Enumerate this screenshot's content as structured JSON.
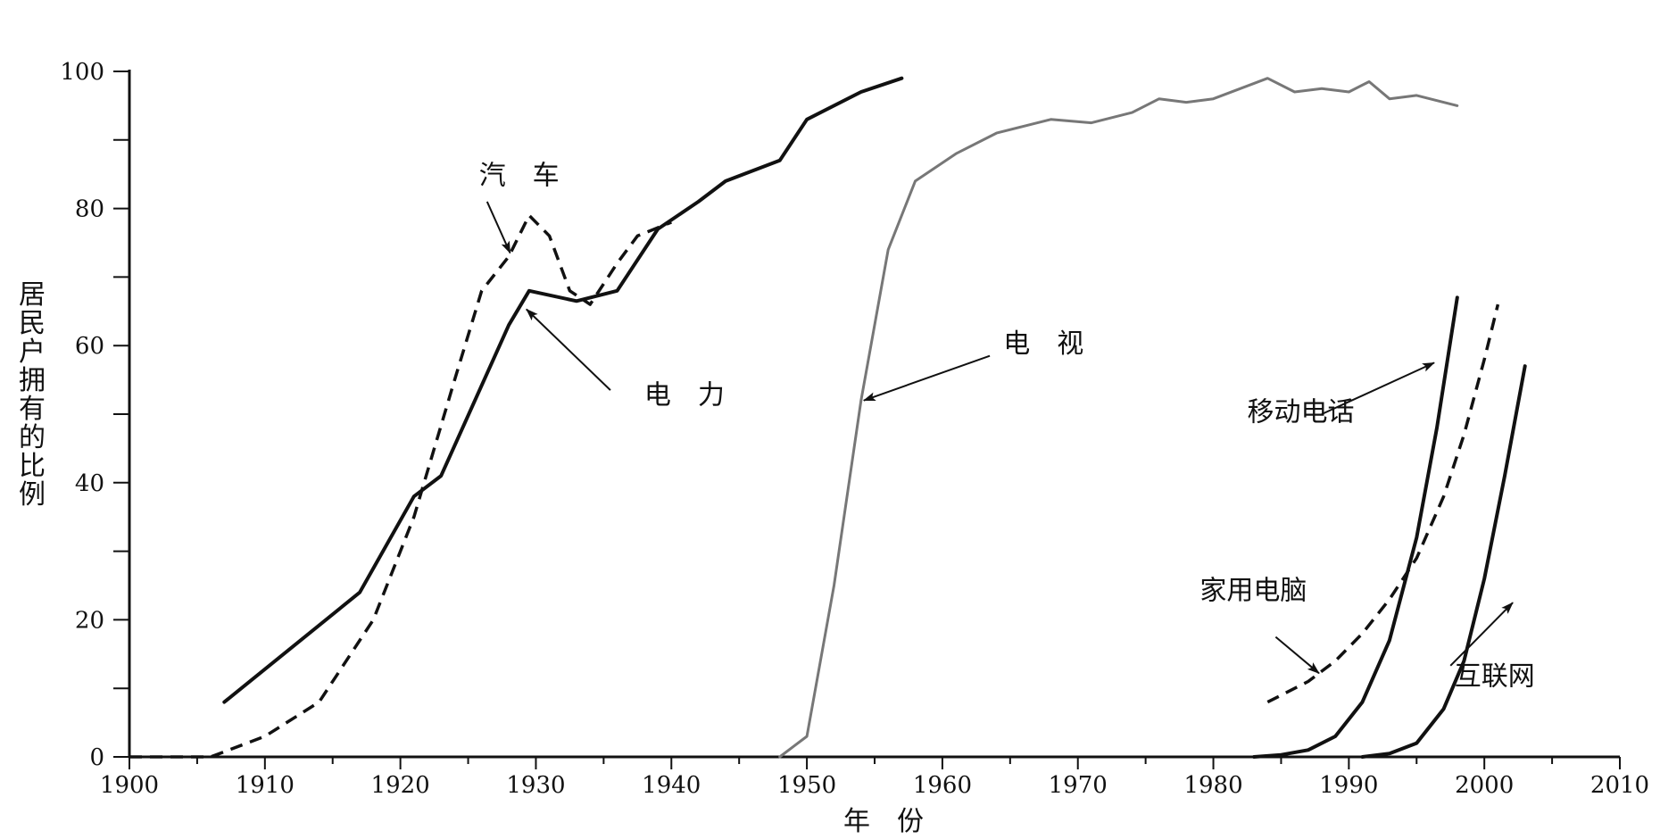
{
  "chart_data": {
    "type": "line",
    "title": "",
    "xlabel": "年　份",
    "ylabel": "居民户拥有的比例",
    "xlim": [
      1900,
      2010
    ],
    "ylim": [
      0,
      100
    ],
    "x_ticks": [
      1900,
      1910,
      1920,
      1930,
      1940,
      1950,
      1960,
      1970,
      1980,
      1990,
      2000,
      2010
    ],
    "y_ticks": [
      0,
      20,
      40,
      60,
      80,
      100
    ],
    "grid": false,
    "legend": "none",
    "series": [
      {
        "name": "电　力",
        "style": "solid",
        "color": "#111111",
        "points": [
          [
            1907,
            8
          ],
          [
            1917,
            24
          ],
          [
            1921,
            38
          ],
          [
            1923,
            41
          ],
          [
            1928,
            63
          ],
          [
            1929.5,
            68
          ],
          [
            1933,
            66.5
          ],
          [
            1936,
            68
          ],
          [
            1939,
            77
          ],
          [
            1942,
            81
          ],
          [
            1944,
            84
          ],
          [
            1948,
            87
          ],
          [
            1950,
            93
          ],
          [
            1954,
            97
          ],
          [
            1957,
            99
          ]
        ]
      },
      {
        "name": "汽　车",
        "style": "dashed",
        "color": "#111111",
        "points": [
          [
            1900,
            0
          ],
          [
            1906,
            0
          ],
          [
            1910,
            3
          ],
          [
            1914,
            8
          ],
          [
            1918,
            20
          ],
          [
            1921,
            35
          ],
          [
            1924,
            55
          ],
          [
            1926,
            68
          ],
          [
            1928,
            73
          ],
          [
            1929.5,
            79
          ],
          [
            1931,
            76
          ],
          [
            1932.5,
            68
          ],
          [
            1934,
            66
          ],
          [
            1936,
            72
          ],
          [
            1937.5,
            76
          ],
          [
            1940,
            78
          ]
        ]
      },
      {
        "name": "电　视",
        "style": "solid-thin",
        "color": "#777777",
        "points": [
          [
            1948,
            0
          ],
          [
            1950,
            3
          ],
          [
            1952,
            25
          ],
          [
            1954,
            52
          ],
          [
            1956,
            74
          ],
          [
            1958,
            84
          ],
          [
            1961,
            88
          ],
          [
            1964,
            91
          ],
          [
            1966,
            92
          ],
          [
            1968,
            93
          ],
          [
            1971,
            92.5
          ],
          [
            1974,
            94
          ],
          [
            1976,
            96
          ],
          [
            1978,
            95.5
          ],
          [
            1980,
            96
          ],
          [
            1982,
            97.5
          ],
          [
            1984,
            99
          ],
          [
            1986,
            97
          ],
          [
            1988,
            97.5
          ],
          [
            1990,
            97
          ],
          [
            1991.5,
            98.5
          ],
          [
            1993,
            96
          ],
          [
            1995,
            96.5
          ],
          [
            1998,
            95
          ]
        ]
      },
      {
        "name": "移动电话",
        "style": "solid",
        "color": "#111111",
        "points": [
          [
            1983,
            0
          ],
          [
            1985,
            0.3
          ],
          [
            1987,
            1
          ],
          [
            1989,
            3
          ],
          [
            1991,
            8
          ],
          [
            1993,
            17
          ],
          [
            1995,
            32
          ],
          [
            1996.5,
            48
          ],
          [
            1998,
            67
          ]
        ]
      },
      {
        "name": "家用电脑",
        "style": "dashed",
        "color": "#111111",
        "points": [
          [
            1984,
            8
          ],
          [
            1987,
            11
          ],
          [
            1989,
            14
          ],
          [
            1991,
            18
          ],
          [
            1993,
            23
          ],
          [
            1995,
            29
          ],
          [
            1997,
            38
          ],
          [
            1998.5,
            47
          ],
          [
            2000,
            58
          ],
          [
            2001,
            66
          ]
        ]
      },
      {
        "name": "互联网",
        "style": "solid",
        "color": "#111111",
        "points": [
          [
            1991,
            0
          ],
          [
            1993,
            0.5
          ],
          [
            1995,
            2
          ],
          [
            1997,
            7
          ],
          [
            1998.5,
            14
          ],
          [
            2000,
            26
          ],
          [
            2001.5,
            41
          ],
          [
            2003,
            57
          ]
        ]
      }
    ],
    "annotations": [
      {
        "text": "汽　车",
        "label_x": 1925.8,
        "label_y": 83.5,
        "arrow_from": [
          1926.4,
          81
        ],
        "arrow_to": [
          1928.1,
          73.5
        ]
      },
      {
        "text": "电　力",
        "label_x": 1938,
        "label_y": 51.5,
        "arrow_from": [
          1935.5,
          53.5
        ],
        "arrow_to": [
          1929.3,
          65.3
        ]
      },
      {
        "text": "电　视",
        "label_x": 1964.5,
        "label_y": 59,
        "arrow_from": [
          1963.5,
          58.5
        ],
        "arrow_to": [
          1954.2,
          52
        ]
      },
      {
        "text": "移动电话",
        "label_x": 1982.5,
        "label_y": 49,
        "arrow_from": [
          1988,
          50
        ],
        "arrow_to": [
          1996.3,
          57.5
        ]
      },
      {
        "text": "家用电脑",
        "label_x": 1979,
        "label_y": 23,
        "arrow_from": [
          1984.6,
          17.5
        ],
        "arrow_to": [
          1987.8,
          12.2
        ]
      },
      {
        "text": "互联网",
        "label_x": 1997.8,
        "label_y": 10.5,
        "arrow_from": [
          1997.5,
          13.3
        ],
        "arrow_to": [
          2002.1,
          22.5
        ]
      }
    ]
  }
}
